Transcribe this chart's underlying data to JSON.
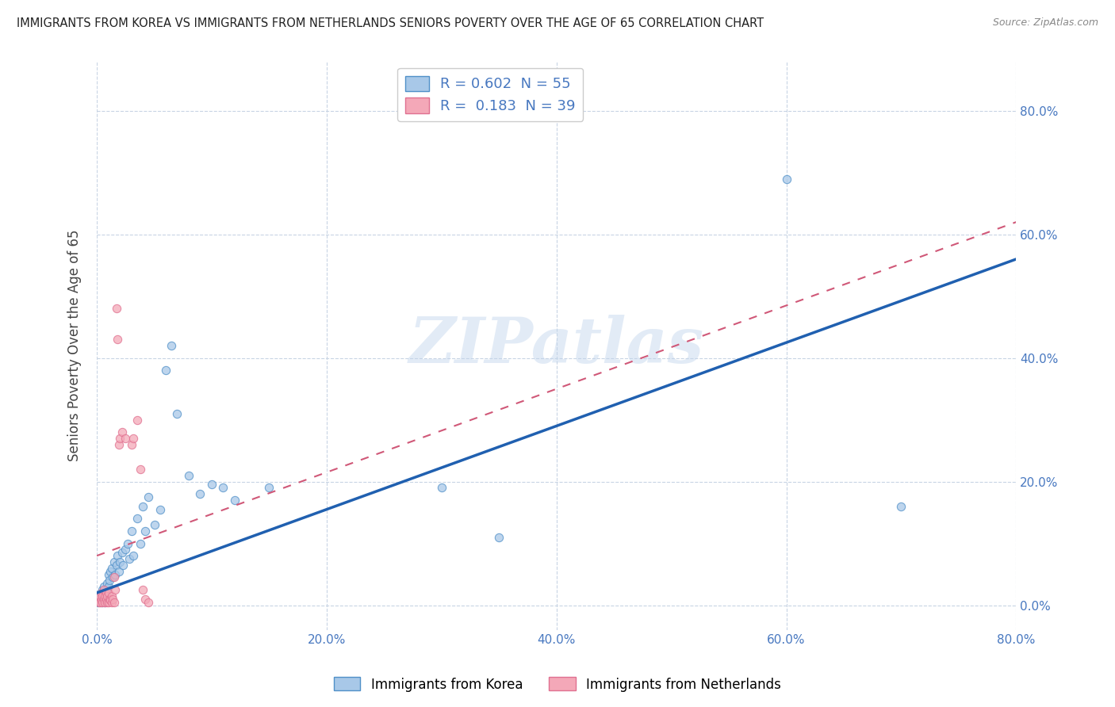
{
  "title": "IMMIGRANTS FROM KOREA VS IMMIGRANTS FROM NETHERLANDS SENIORS POVERTY OVER THE AGE OF 65 CORRELATION CHART",
  "source": "Source: ZipAtlas.com",
  "ylabel": "Seniors Poverty Over the Age of 65",
  "xlim": [
    0.0,
    0.8
  ],
  "ylim": [
    -0.04,
    0.88
  ],
  "xtick_vals": [
    0.0,
    0.2,
    0.4,
    0.6,
    0.8
  ],
  "ytick_vals": [
    0.0,
    0.2,
    0.4,
    0.6,
    0.8
  ],
  "korea_color": "#a8c8e8",
  "netherlands_color": "#f4a8b8",
  "korea_edge_color": "#5090c8",
  "netherlands_edge_color": "#e07090",
  "korea_line_color": "#2060b0",
  "netherlands_line_color": "#d05878",
  "watermark": "ZIPatlas",
  "background_color": "#ffffff",
  "grid_color": "#c8d4e4",
  "korea_R": 0.602,
  "korea_N": 55,
  "netherlands_R": 0.183,
  "netherlands_N": 39,
  "korea_line_x0": 0.0,
  "korea_line_y0": 0.02,
  "korea_line_x1": 0.8,
  "korea_line_y1": 0.56,
  "netherlands_line_x0": 0.0,
  "netherlands_line_y0": 0.08,
  "netherlands_line_x1": 0.8,
  "netherlands_line_y1": 0.62,
  "korea_points": [
    [
      0.001,
      0.005
    ],
    [
      0.002,
      0.008
    ],
    [
      0.003,
      0.01
    ],
    [
      0.003,
      0.015
    ],
    [
      0.004,
      0.005
    ],
    [
      0.004,
      0.02
    ],
    [
      0.005,
      0.01
    ],
    [
      0.005,
      0.025
    ],
    [
      0.006,
      0.015
    ],
    [
      0.006,
      0.03
    ],
    [
      0.007,
      0.02
    ],
    [
      0.007,
      0.005
    ],
    [
      0.008,
      0.025
    ],
    [
      0.008,
      0.01
    ],
    [
      0.009,
      0.015
    ],
    [
      0.009,
      0.035
    ],
    [
      0.01,
      0.03
    ],
    [
      0.01,
      0.05
    ],
    [
      0.011,
      0.04
    ],
    [
      0.012,
      0.055
    ],
    [
      0.013,
      0.06
    ],
    [
      0.014,
      0.045
    ],
    [
      0.015,
      0.07
    ],
    [
      0.016,
      0.05
    ],
    [
      0.017,
      0.065
    ],
    [
      0.018,
      0.08
    ],
    [
      0.019,
      0.055
    ],
    [
      0.02,
      0.07
    ],
    [
      0.022,
      0.085
    ],
    [
      0.023,
      0.065
    ],
    [
      0.025,
      0.09
    ],
    [
      0.027,
      0.1
    ],
    [
      0.028,
      0.075
    ],
    [
      0.03,
      0.12
    ],
    [
      0.032,
      0.08
    ],
    [
      0.035,
      0.14
    ],
    [
      0.038,
      0.1
    ],
    [
      0.04,
      0.16
    ],
    [
      0.042,
      0.12
    ],
    [
      0.045,
      0.175
    ],
    [
      0.05,
      0.13
    ],
    [
      0.055,
      0.155
    ],
    [
      0.06,
      0.38
    ],
    [
      0.065,
      0.42
    ],
    [
      0.07,
      0.31
    ],
    [
      0.08,
      0.21
    ],
    [
      0.09,
      0.18
    ],
    [
      0.1,
      0.195
    ],
    [
      0.11,
      0.19
    ],
    [
      0.12,
      0.17
    ],
    [
      0.15,
      0.19
    ],
    [
      0.3,
      0.19
    ],
    [
      0.35,
      0.11
    ],
    [
      0.6,
      0.69
    ],
    [
      0.7,
      0.16
    ]
  ],
  "netherlands_points": [
    [
      0.002,
      0.005
    ],
    [
      0.002,
      0.01
    ],
    [
      0.003,
      0.005
    ],
    [
      0.003,
      0.015
    ],
    [
      0.004,
      0.008
    ],
    [
      0.004,
      0.02
    ],
    [
      0.005,
      0.005
    ],
    [
      0.005,
      0.015
    ],
    [
      0.006,
      0.01
    ],
    [
      0.006,
      0.025
    ],
    [
      0.007,
      0.005
    ],
    [
      0.007,
      0.015
    ],
    [
      0.008,
      0.01
    ],
    [
      0.008,
      0.02
    ],
    [
      0.009,
      0.005
    ],
    [
      0.009,
      0.015
    ],
    [
      0.01,
      0.005
    ],
    [
      0.01,
      0.02
    ],
    [
      0.011,
      0.01
    ],
    [
      0.012,
      0.008
    ],
    [
      0.013,
      0.005
    ],
    [
      0.013,
      0.015
    ],
    [
      0.014,
      0.01
    ],
    [
      0.015,
      0.005
    ],
    [
      0.015,
      0.045
    ],
    [
      0.016,
      0.025
    ],
    [
      0.017,
      0.48
    ],
    [
      0.018,
      0.43
    ],
    [
      0.019,
      0.26
    ],
    [
      0.02,
      0.27
    ],
    [
      0.022,
      0.28
    ],
    [
      0.025,
      0.27
    ],
    [
      0.03,
      0.26
    ],
    [
      0.032,
      0.27
    ],
    [
      0.035,
      0.3
    ],
    [
      0.038,
      0.22
    ],
    [
      0.04,
      0.025
    ],
    [
      0.042,
      0.01
    ],
    [
      0.045,
      0.005
    ]
  ]
}
